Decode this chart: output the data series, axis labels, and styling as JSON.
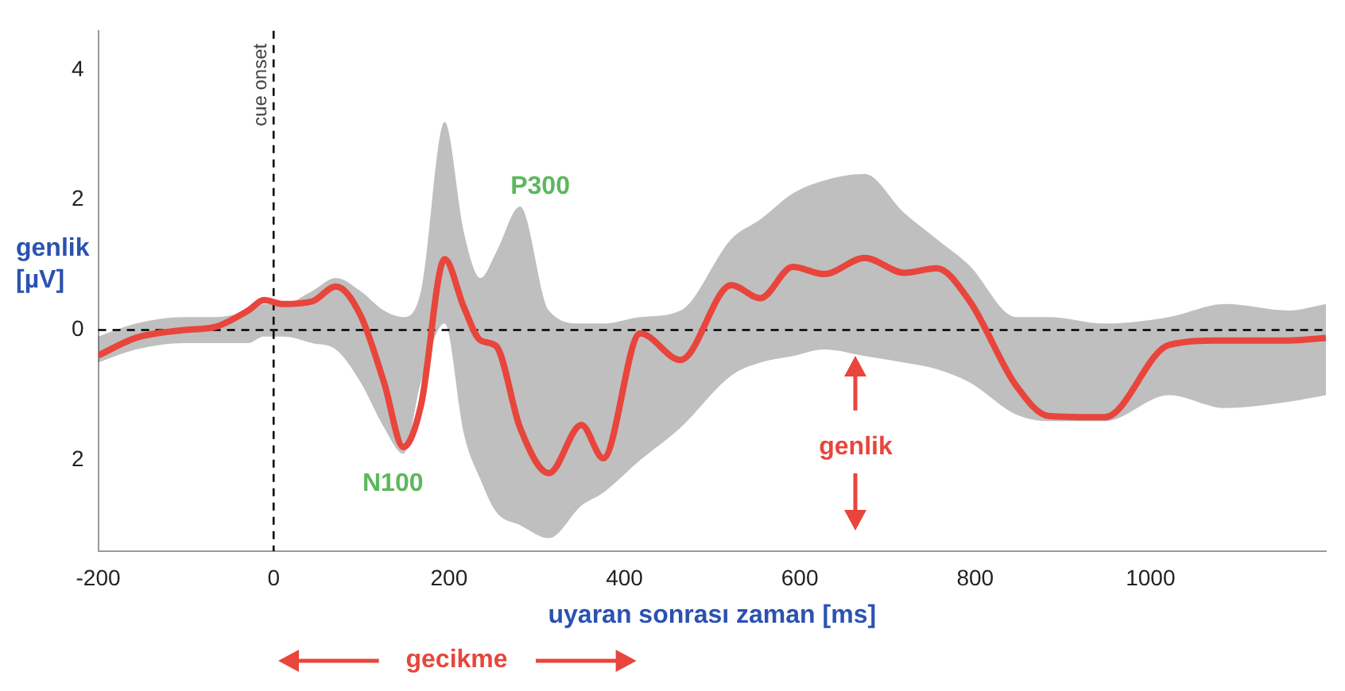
{
  "chart_data": {
    "type": "line",
    "xlabel": "uyaran sonrası zaman [ms]",
    "ylabel": "genlik [µV]",
    "xlim": [
      -200,
      1200
    ],
    "xticks": [
      -200,
      0,
      200,
      400,
      600,
      800,
      1000
    ],
    "ylim": [
      -3.4,
      4.6
    ],
    "yticks": [
      4,
      2,
      0,
      {
        "value": -2,
        "label": "2"
      }
    ],
    "grid": false,
    "legend": false,
    "marker": "none",
    "series": [
      {
        "color": "#e8453c",
        "x": [
          -200,
          -157,
          -102,
          -66,
          -29,
          -11,
          11,
          44,
          71,
          99,
          126,
          148,
          168,
          195,
          217,
          236,
          254,
          281,
          314,
          351,
          376,
          418,
          464,
          522,
          555,
          592,
          628,
          674,
          719,
          756,
          793,
          847,
          884,
          948,
          1021,
          1085,
          1158,
          1200
        ],
        "values": [
          -0.39,
          -0.12,
          0,
          0.05,
          0.3,
          0.46,
          0.4,
          0.44,
          0.67,
          0.23,
          -0.81,
          -1.8,
          -1.16,
          1.09,
          0.35,
          -0.16,
          -0.25,
          -1.5,
          -2.2,
          -1.46,
          -1.97,
          -0.05,
          -0.46,
          0.69,
          0.49,
          0.97,
          0.86,
          1.11,
          0.88,
          0.95,
          0.46,
          -0.86,
          -1.32,
          -1.34,
          -0.23,
          -0.16,
          -0.16,
          -0.12
        ],
        "upper": [
          -0.1,
          0.1,
          0.2,
          0.2,
          0.3,
          0.4,
          0.4,
          0.6,
          0.8,
          0.6,
          0.3,
          0.2,
          0.6,
          3.2,
          1.5,
          0.8,
          1.2,
          1.9,
          0.3,
          0.1,
          0.1,
          0.2,
          0.3,
          1.4,
          1.7,
          2.1,
          2.3,
          2.4,
          1.8,
          1.4,
          1.0,
          0.2,
          0.2,
          0.1,
          0.2,
          0.4,
          0.3,
          0.4
        ],
        "lower": [
          -0.5,
          -0.3,
          -0.2,
          -0.2,
          -0.2,
          -0.1,
          -0.1,
          -0.2,
          -0.3,
          -0.8,
          -1.5,
          -1.9,
          -0.8,
          0.1,
          -1.6,
          -2.3,
          -2.8,
          -3.0,
          -3.2,
          -2.7,
          -2.5,
          -2.0,
          -1.5,
          -0.7,
          -0.5,
          -0.4,
          -0.3,
          -0.4,
          -0.5,
          -0.6,
          -0.8,
          -1.3,
          -1.4,
          -1.4,
          -1.0,
          -1.2,
          -1.1,
          -1.0
        ]
      }
    ],
    "ref_lines": [
      {
        "axis": "x",
        "value": 0,
        "label": "cue onset",
        "color": "#000000",
        "line_style": "dashed"
      },
      {
        "axis": "y",
        "value": 0,
        "color": "#000000",
        "line_style": "dashed"
      }
    ],
    "annotations": [
      "P300",
      "N100",
      "genlik",
      "gecikme"
    ]
  }
}
